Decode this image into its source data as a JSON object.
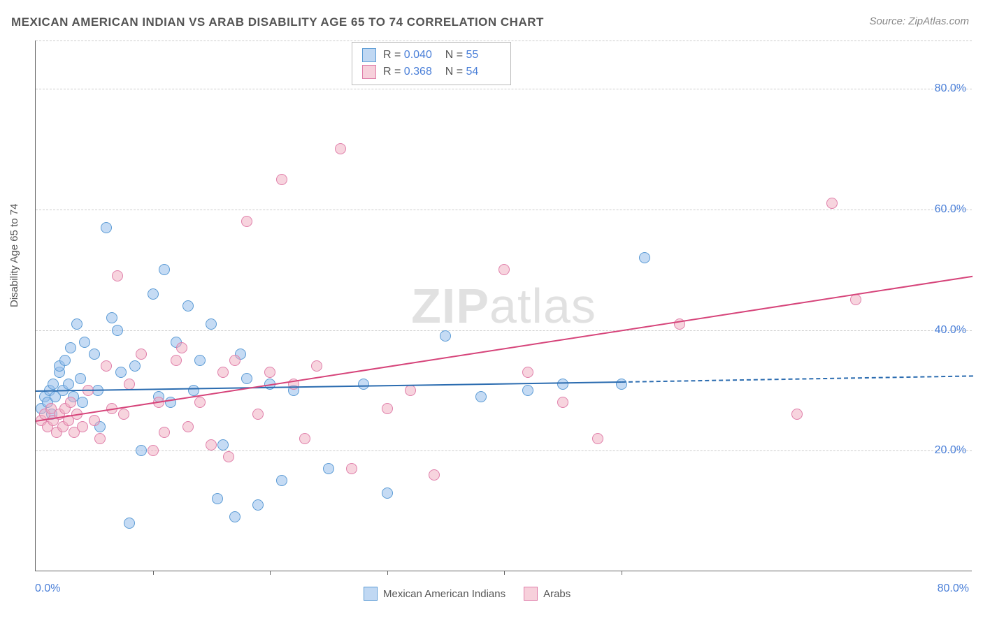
{
  "title": "MEXICAN AMERICAN INDIAN VS ARAB DISABILITY AGE 65 TO 74 CORRELATION CHART",
  "source": "Source: ZipAtlas.com",
  "ylabel": "Disability Age 65 to 74",
  "watermark_bold": "ZIP",
  "watermark_rest": "atlas",
  "chart": {
    "type": "scatter",
    "xlim": [
      0,
      80
    ],
    "ylim": [
      0,
      88
    ],
    "xtick_labels": [
      "0.0%",
      "80.0%"
    ],
    "xtick_positions_minor": [
      10,
      20,
      30,
      40,
      50
    ],
    "ytick_labels": [
      "20.0%",
      "40.0%",
      "60.0%",
      "80.0%"
    ],
    "ytick_values": [
      20,
      40,
      60,
      80
    ],
    "grid_color": "#cccccc",
    "background_color": "#ffffff",
    "axis_color": "#666666",
    "label_color": "#4a7fd8",
    "series": [
      {
        "name": "Mexican American Indians",
        "color_fill": "rgba(150,190,235,0.55)",
        "color_stroke": "#5b9bd5",
        "R": "0.040",
        "N": "55",
        "trend": {
          "x1": 0,
          "y1": 30.0,
          "x2": 50,
          "y2": 31.5,
          "solid": true,
          "dash_to_x": 80,
          "dash_to_y": 32.5,
          "color": "#2b6cb0"
        },
        "points": [
          [
            0.5,
            27
          ],
          [
            0.8,
            29
          ],
          [
            1,
            28
          ],
          [
            1.2,
            30
          ],
          [
            1.4,
            26
          ],
          [
            1.5,
            31
          ],
          [
            1.7,
            29
          ],
          [
            2,
            33
          ],
          [
            2,
            34
          ],
          [
            2.3,
            30
          ],
          [
            2.5,
            35
          ],
          [
            2.8,
            31
          ],
          [
            3,
            37
          ],
          [
            3.2,
            29
          ],
          [
            3.5,
            41
          ],
          [
            3.8,
            32
          ],
          [
            4,
            28
          ],
          [
            4.2,
            38
          ],
          [
            5,
            36
          ],
          [
            5.3,
            30
          ],
          [
            5.5,
            24
          ],
          [
            6,
            57
          ],
          [
            6.5,
            42
          ],
          [
            7,
            40
          ],
          [
            7.3,
            33
          ],
          [
            8,
            8
          ],
          [
            8.5,
            34
          ],
          [
            9,
            20
          ],
          [
            10,
            46
          ],
          [
            10.5,
            29
          ],
          [
            11,
            50
          ],
          [
            11.5,
            28
          ],
          [
            12,
            38
          ],
          [
            13,
            44
          ],
          [
            13.5,
            30
          ],
          [
            14,
            35
          ],
          [
            15,
            41
          ],
          [
            15.5,
            12
          ],
          [
            16,
            21
          ],
          [
            17,
            9
          ],
          [
            17.5,
            36
          ],
          [
            18,
            32
          ],
          [
            19,
            11
          ],
          [
            20,
            31
          ],
          [
            21,
            15
          ],
          [
            22,
            30
          ],
          [
            25,
            17
          ],
          [
            28,
            31
          ],
          [
            30,
            13
          ],
          [
            35,
            39
          ],
          [
            38,
            29
          ],
          [
            42,
            30
          ],
          [
            45,
            31
          ],
          [
            50,
            31
          ],
          [
            52,
            52
          ]
        ]
      },
      {
        "name": "Arabs",
        "color_fill": "rgba(240,170,190,0.5)",
        "color_stroke": "#e07faa",
        "R": "0.368",
        "N": "54",
        "trend": {
          "x1": 0,
          "y1": 25,
          "x2": 80,
          "y2": 49,
          "solid": true,
          "color": "#d6447a"
        },
        "points": [
          [
            0.5,
            25
          ],
          [
            0.8,
            26
          ],
          [
            1,
            24
          ],
          [
            1.3,
            27
          ],
          [
            1.5,
            25
          ],
          [
            1.8,
            23
          ],
          [
            2,
            26
          ],
          [
            2.3,
            24
          ],
          [
            2.5,
            27
          ],
          [
            2.8,
            25
          ],
          [
            3,
            28
          ],
          [
            3.3,
            23
          ],
          [
            3.5,
            26
          ],
          [
            4,
            24
          ],
          [
            4.5,
            30
          ],
          [
            5,
            25
          ],
          [
            5.5,
            22
          ],
          [
            6,
            34
          ],
          [
            6.5,
            27
          ],
          [
            7,
            49
          ],
          [
            7.5,
            26
          ],
          [
            8,
            31
          ],
          [
            9,
            36
          ],
          [
            10,
            20
          ],
          [
            10.5,
            28
          ],
          [
            11,
            23
          ],
          [
            12,
            35
          ],
          [
            12.5,
            37
          ],
          [
            13,
            24
          ],
          [
            14,
            28
          ],
          [
            15,
            21
          ],
          [
            16,
            33
          ],
          [
            16.5,
            19
          ],
          [
            17,
            35
          ],
          [
            18,
            58
          ],
          [
            19,
            26
          ],
          [
            20,
            33
          ],
          [
            21,
            65
          ],
          [
            22,
            31
          ],
          [
            23,
            22
          ],
          [
            24,
            34
          ],
          [
            26,
            70
          ],
          [
            27,
            17
          ],
          [
            30,
            27
          ],
          [
            32,
            30
          ],
          [
            34,
            16
          ],
          [
            40,
            50
          ],
          [
            42,
            33
          ],
          [
            45,
            28
          ],
          [
            48,
            22
          ],
          [
            55,
            41
          ],
          [
            65,
            26
          ],
          [
            68,
            61
          ],
          [
            70,
            45
          ]
        ]
      }
    ]
  },
  "bottom_legend": [
    {
      "swatch": "blue",
      "label": "Mexican American Indians"
    },
    {
      "swatch": "pink",
      "label": "Arabs"
    }
  ]
}
